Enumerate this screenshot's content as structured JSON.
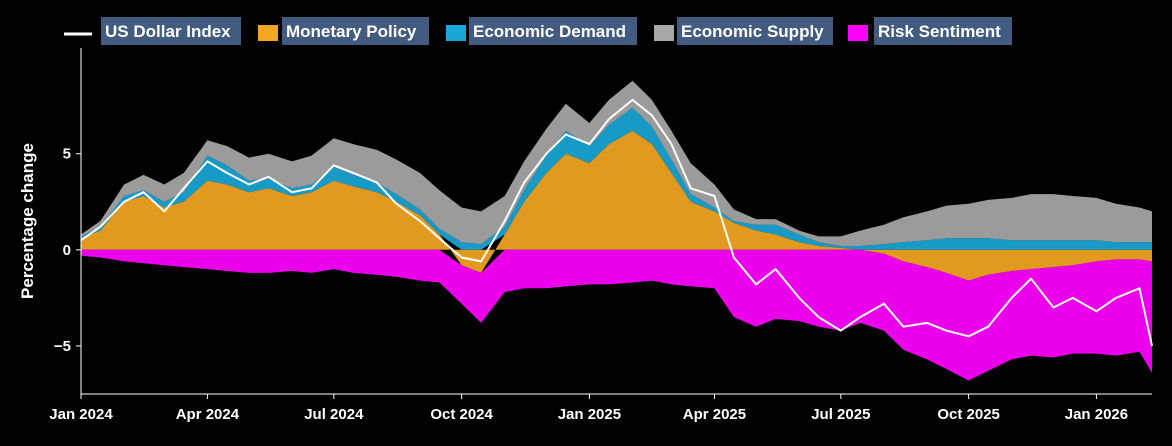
{
  "chart_data": {
    "type": "area",
    "title": "",
    "xlabel": "",
    "ylabel": "Percentage change",
    "ylim": [
      -7.5,
      10.5
    ],
    "xlim": [
      "2024-01-01",
      "2026-02-10"
    ],
    "y_ticks": [
      -5,
      0,
      5
    ],
    "y_tick_labels": [
      "−5",
      "0",
      "5"
    ],
    "x_ticks": [
      "2024-01-01",
      "2024-04-01",
      "2024-07-01",
      "2024-10-01",
      "2025-01-01",
      "2025-04-01",
      "2025-07-01",
      "2025-10-01",
      "2026-01-01"
    ],
    "x_tick_labels": [
      "Jan 2024",
      "Apr 2024",
      "Jul 2024",
      "Oct 2024",
      "Jan 2025",
      "Apr 2025",
      "Jul 2025",
      "Oct 2025",
      "Jan 2026"
    ],
    "grid": false,
    "legend_position": "top",
    "background": "#000000",
    "x": [
      "2024-01-01",
      "2024-01-15",
      "2024-02-01",
      "2024-02-15",
      "2024-03-01",
      "2024-03-15",
      "2024-04-01",
      "2024-04-15",
      "2024-05-01",
      "2024-05-15",
      "2024-06-01",
      "2024-06-15",
      "2024-07-01",
      "2024-07-15",
      "2024-08-01",
      "2024-08-15",
      "2024-09-01",
      "2024-09-15",
      "2024-10-01",
      "2024-10-15",
      "2024-11-01",
      "2024-11-15",
      "2024-12-01",
      "2024-12-15",
      "2025-01-01",
      "2025-01-15",
      "2025-02-01",
      "2025-02-15",
      "2025-03-01",
      "2025-03-15",
      "2025-04-01",
      "2025-04-15",
      "2025-05-01",
      "2025-05-15",
      "2025-06-01",
      "2025-06-15",
      "2025-07-01",
      "2025-07-15",
      "2025-08-01",
      "2025-08-15",
      "2025-09-01",
      "2025-09-15",
      "2025-10-01",
      "2025-10-15",
      "2025-11-01",
      "2025-11-15",
      "2025-12-01",
      "2025-12-15",
      "2026-01-01",
      "2026-01-15",
      "2026-02-01",
      "2026-02-10"
    ],
    "line_series": {
      "name": "US Dollar Index",
      "color": "#ffffff",
      "values": [
        0.5,
        1.2,
        2.5,
        3.0,
        2.0,
        3.2,
        4.6,
        4.0,
        3.4,
        3.8,
        3.0,
        3.2,
        4.4,
        4.0,
        3.5,
        2.4,
        1.5,
        0.6,
        -0.4,
        -0.6,
        1.5,
        3.5,
        5.0,
        6.0,
        5.5,
        6.8,
        7.8,
        7.0,
        5.5,
        3.2,
        2.8,
        -0.4,
        -1.8,
        -1.0,
        -2.5,
        -3.5,
        -4.2,
        -3.5,
        -2.8,
        -4.0,
        -3.8,
        -4.2,
        -4.5,
        -4.0,
        -2.5,
        -1.5,
        -3.0,
        -2.5,
        -3.2,
        -2.5,
        -2.0,
        -5.0
      ]
    },
    "series": [
      {
        "name": "Monetary Policy",
        "color": "#f5a623",
        "values": [
          0.6,
          1.0,
          2.5,
          2.8,
          2.2,
          2.5,
          3.6,
          3.4,
          3.0,
          3.2,
          2.8,
          3.0,
          3.6,
          3.3,
          3.0,
          2.5,
          1.8,
          0.8,
          -0.8,
          -1.2,
          0.8,
          2.5,
          4.0,
          5.0,
          4.5,
          5.5,
          6.2,
          5.5,
          4.0,
          2.5,
          2.0,
          1.4,
          1.0,
          0.8,
          0.4,
          0.2,
          0.1,
          0.0,
          -0.2,
          -0.6,
          -0.9,
          -1.2,
          -1.6,
          -1.3,
          -1.1,
          -1.0,
          -0.9,
          -0.8,
          -0.6,
          -0.5,
          -0.5,
          -0.6
        ]
      },
      {
        "name": "Economic Demand",
        "color": "#1aa7d8",
        "values": [
          0.1,
          0.2,
          0.3,
          0.3,
          0.3,
          0.5,
          1.3,
          1.0,
          0.6,
          0.5,
          0.4,
          0.4,
          0.7,
          0.6,
          0.5,
          0.4,
          0.3,
          0.3,
          0.4,
          0.3,
          0.4,
          0.6,
          0.9,
          1.2,
          0.9,
          1.0,
          1.2,
          0.9,
          0.7,
          0.4,
          0.2,
          0.1,
          0.3,
          0.5,
          0.4,
          0.2,
          0.1,
          0.2,
          0.3,
          0.4,
          0.5,
          0.6,
          0.6,
          0.6,
          0.5,
          0.5,
          0.5,
          0.5,
          0.5,
          0.4,
          0.4,
          0.4
        ]
      },
      {
        "name": "Economic Supply",
        "color": "#a8a8a8",
        "values": [
          0.1,
          0.3,
          0.6,
          0.8,
          0.9,
          1.0,
          0.8,
          1.0,
          1.2,
          1.3,
          1.4,
          1.5,
          1.5,
          1.6,
          1.7,
          1.8,
          1.9,
          2.0,
          1.8,
          1.7,
          1.6,
          1.5,
          1.4,
          1.4,
          1.2,
          1.3,
          1.4,
          1.4,
          1.5,
          1.6,
          1.2,
          0.6,
          0.3,
          0.3,
          0.2,
          0.3,
          0.5,
          0.8,
          1.0,
          1.3,
          1.5,
          1.7,
          1.8,
          2.0,
          2.2,
          2.4,
          2.4,
          2.3,
          2.2,
          2.0,
          1.8,
          1.6
        ]
      },
      {
        "name": "Risk Sentiment",
        "color": "#ff00ff",
        "values": [
          -0.3,
          -0.4,
          -0.6,
          -0.7,
          -0.8,
          -0.9,
          -1.0,
          -1.1,
          -1.2,
          -1.2,
          -1.1,
          -1.2,
          -1.0,
          -1.2,
          -1.3,
          -1.4,
          -1.6,
          -1.7,
          -2.0,
          -2.6,
          -2.2,
          -2.0,
          -2.0,
          -1.9,
          -1.8,
          -1.8,
          -1.7,
          -1.6,
          -1.8,
          -1.9,
          -2.0,
          -3.5,
          -4.0,
          -3.6,
          -3.7,
          -4.0,
          -4.2,
          -3.8,
          -4.0,
          -4.6,
          -4.8,
          -5.0,
          -5.2,
          -5.0,
          -4.6,
          -4.5,
          -4.7,
          -4.6,
          -4.8,
          -5.0,
          -4.8,
          -5.8
        ]
      }
    ]
  }
}
